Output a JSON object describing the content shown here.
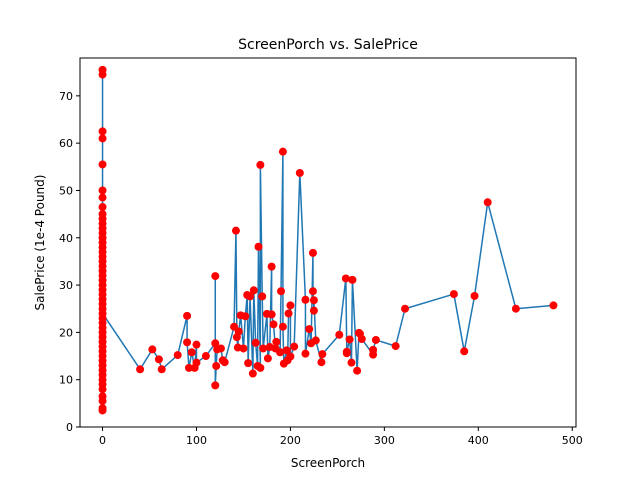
{
  "chart_data": {
    "type": "line",
    "title": "ScreenPorch vs. SalePrice",
    "xlabel": "ScreenPorch",
    "ylabel": "SalePrice (1e-4 Pound)",
    "xlim": [
      -24,
      504
    ],
    "ylim": [
      0,
      78
    ],
    "xticks": [
      0,
      100,
      200,
      300,
      400,
      500
    ],
    "yticks": [
      0,
      10,
      20,
      30,
      40,
      50,
      60,
      70
    ],
    "grid": false,
    "line_color": "#1f77b4",
    "marker_color": "#ff0000",
    "zero_column": {
      "x": 0,
      "values": [
        3.5,
        4.0,
        5.5,
        6.5,
        8,
        9,
        10,
        11,
        12,
        13,
        14,
        15,
        16,
        17,
        18,
        19,
        20,
        21,
        22,
        23,
        24,
        25,
        26,
        27,
        28,
        29,
        30,
        31,
        32,
        33,
        34,
        35,
        36,
        37,
        38,
        39,
        40,
        41,
        42,
        43,
        44,
        45,
        46.5,
        48.5,
        50,
        55.5,
        61,
        62.5,
        74.5,
        75.5
      ]
    },
    "points": [
      {
        "x": 40,
        "y": 12.2
      },
      {
        "x": 53,
        "y": 16.4
      },
      {
        "x": 60,
        "y": 14.3
      },
      {
        "x": 63,
        "y": 12.2
      },
      {
        "x": 80,
        "y": 15.2
      },
      {
        "x": 90,
        "y": 23.5
      },
      {
        "x": 90,
        "y": 17.9
      },
      {
        "x": 92,
        "y": 12.5
      },
      {
        "x": 95,
        "y": 15.8
      },
      {
        "x": 98,
        "y": 12.5
      },
      {
        "x": 100,
        "y": 17.4
      },
      {
        "x": 100,
        "y": 13.6
      },
      {
        "x": 110,
        "y": 15.0
      },
      {
        "x": 120,
        "y": 17.7
      },
      {
        "x": 120,
        "y": 31.9
      },
      {
        "x": 120,
        "y": 8.8
      },
      {
        "x": 121,
        "y": 12.9
      },
      {
        "x": 122,
        "y": 16.4
      },
      {
        "x": 126,
        "y": 16.6
      },
      {
        "x": 128,
        "y": 14.1
      },
      {
        "x": 130,
        "y": 13.7
      },
      {
        "x": 140,
        "y": 21.2
      },
      {
        "x": 142,
        "y": 41.5
      },
      {
        "x": 143,
        "y": 19.0
      },
      {
        "x": 144,
        "y": 16.8
      },
      {
        "x": 145,
        "y": 20.2
      },
      {
        "x": 147,
        "y": 23.6
      },
      {
        "x": 150,
        "y": 16.6
      },
      {
        "x": 152,
        "y": 23.4
      },
      {
        "x": 154,
        "y": 27.9
      },
      {
        "x": 155,
        "y": 13.5
      },
      {
        "x": 157,
        "y": 27.6
      },
      {
        "x": 160,
        "y": 11.3
      },
      {
        "x": 161,
        "y": 28.9
      },
      {
        "x": 163,
        "y": 17.8
      },
      {
        "x": 165,
        "y": 12.9
      },
      {
        "x": 166,
        "y": 38.1
      },
      {
        "x": 168,
        "y": 12.5
      },
      {
        "x": 168,
        "y": 55.4
      },
      {
        "x": 170,
        "y": 27.6
      },
      {
        "x": 171,
        "y": 16.6
      },
      {
        "x": 175,
        "y": 23.9
      },
      {
        "x": 176,
        "y": 14.5
      },
      {
        "x": 178,
        "y": 16.9
      },
      {
        "x": 180,
        "y": 33.9
      },
      {
        "x": 180,
        "y": 23.8
      },
      {
        "x": 182,
        "y": 21.7
      },
      {
        "x": 184,
        "y": 16.6
      },
      {
        "x": 185,
        "y": 18.0
      },
      {
        "x": 189,
        "y": 15.8
      },
      {
        "x": 190,
        "y": 28.7
      },
      {
        "x": 192,
        "y": 58.2
      },
      {
        "x": 192,
        "y": 21.2
      },
      {
        "x": 193,
        "y": 13.4
      },
      {
        "x": 196,
        "y": 16.2
      },
      {
        "x": 197,
        "y": 14.1
      },
      {
        "x": 198,
        "y": 24.0
      },
      {
        "x": 200,
        "y": 25.7
      },
      {
        "x": 200,
        "y": 14.9
      },
      {
        "x": 204,
        "y": 17.0
      },
      {
        "x": 210,
        "y": 53.7
      },
      {
        "x": 216,
        "y": 26.9
      },
      {
        "x": 216,
        "y": 15.5
      },
      {
        "x": 220,
        "y": 20.7
      },
      {
        "x": 222,
        "y": 17.7
      },
      {
        "x": 224,
        "y": 36.8
      },
      {
        "x": 224,
        "y": 28.7
      },
      {
        "x": 225,
        "y": 24.6
      },
      {
        "x": 225,
        "y": 26.8
      },
      {
        "x": 227,
        "y": 18.3
      },
      {
        "x": 233,
        "y": 13.7
      },
      {
        "x": 234,
        "y": 15.4
      },
      {
        "x": 252,
        "y": 19.5
      },
      {
        "x": 259,
        "y": 31.4
      },
      {
        "x": 260,
        "y": 15.6
      },
      {
        "x": 260,
        "y": 15.9
      },
      {
        "x": 263,
        "y": 18.5
      },
      {
        "x": 265,
        "y": 13.6
      },
      {
        "x": 266,
        "y": 31.1
      },
      {
        "x": 271,
        "y": 11.9
      },
      {
        "x": 273,
        "y": 19.9
      },
      {
        "x": 274,
        "y": 19.7
      },
      {
        "x": 276,
        "y": 18.6
      },
      {
        "x": 288,
        "y": 15.3
      },
      {
        "x": 288,
        "y": 16.3
      },
      {
        "x": 291,
        "y": 18.4
      },
      {
        "x": 312,
        "y": 17.1
      },
      {
        "x": 322,
        "y": 25.0
      },
      {
        "x": 374,
        "y": 28.1
      },
      {
        "x": 385,
        "y": 16.0
      },
      {
        "x": 396,
        "y": 27.7
      },
      {
        "x": 410,
        "y": 47.5
      },
      {
        "x": 440,
        "y": 25.0
      },
      {
        "x": 480,
        "y": 25.7
      }
    ]
  }
}
